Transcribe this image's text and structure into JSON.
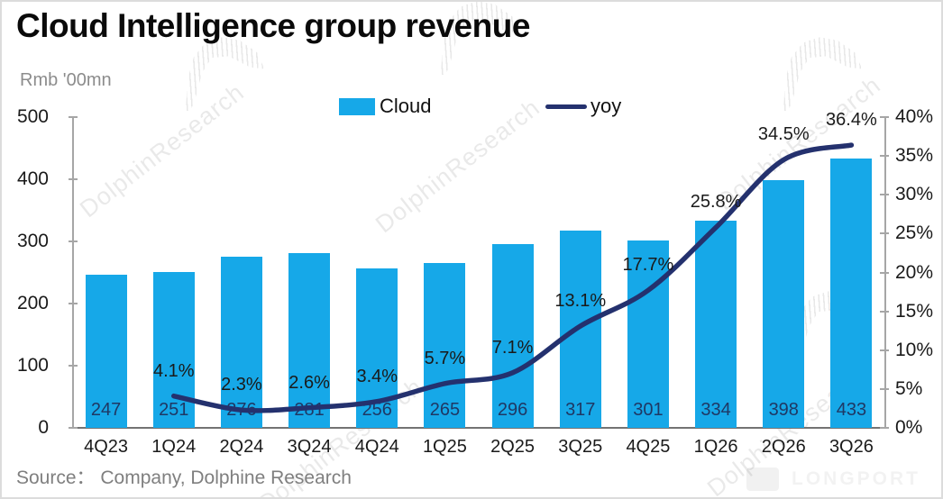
{
  "header": {
    "title": "Cloud Intelligence group revenue",
    "unit_label": "Rmb '00mn"
  },
  "legend": {
    "cloud_label": "Cloud",
    "yoy_label": "yoy"
  },
  "source": "Source：  Company, Dolphine Research",
  "watermark": {
    "text": "DolphinResearch",
    "brand": "LONGPORT"
  },
  "colors": {
    "bar": "#16a8e8",
    "line": "#24316e",
    "bar_label": "#1f3864",
    "yoy_label": "#1a1a1a",
    "axis": "#a6a6a6",
    "baseline": "#737373"
  },
  "chart_data": {
    "type": "bar",
    "combo": "bar+line",
    "title": "Cloud Intelligence group revenue",
    "unit": "Rmb '00mn",
    "categories": [
      "4Q23",
      "1Q24",
      "2Q24",
      "3Q24",
      "4Q24",
      "1Q25",
      "2Q25",
      "3Q25",
      "4Q25",
      "1Q26",
      "2Q26",
      "3Q26"
    ],
    "series": [
      {
        "name": "Cloud",
        "type": "bar",
        "axis": "left",
        "values": [
          247,
          251,
          276,
          281,
          256,
          265,
          296,
          317,
          301,
          334,
          398,
          433
        ],
        "labels": [
          "247",
          "251",
          "276",
          "281",
          "256",
          "265",
          "296",
          "317",
          "301",
          "334",
          "398",
          "433"
        ],
        "color": "#16a8e8"
      },
      {
        "name": "yoy",
        "type": "line",
        "axis": "right",
        "values": [
          null,
          4.1,
          2.3,
          2.6,
          3.4,
          5.7,
          7.1,
          13.1,
          17.7,
          25.8,
          34.5,
          36.4
        ],
        "labels": [
          "",
          "4.1%",
          "2.3%",
          "2.6%",
          "3.4%",
          "5.7%",
          "7.1%",
          "13.1%",
          "17.7%",
          "25.8%",
          "34.5%",
          "36.4%"
        ],
        "color": "#24316e"
      }
    ],
    "left_axis": {
      "min": 0,
      "max": 500,
      "step": 100,
      "ticks": [
        "0",
        "100",
        "200",
        "300",
        "400",
        "500"
      ]
    },
    "right_axis": {
      "min": 0,
      "max": 40,
      "step": 5,
      "ticks": [
        "0%",
        "5%",
        "10%",
        "15%",
        "20%",
        "25%",
        "30%",
        "35%",
        "40%"
      ]
    },
    "legend_position": "top",
    "gridlines": false
  }
}
